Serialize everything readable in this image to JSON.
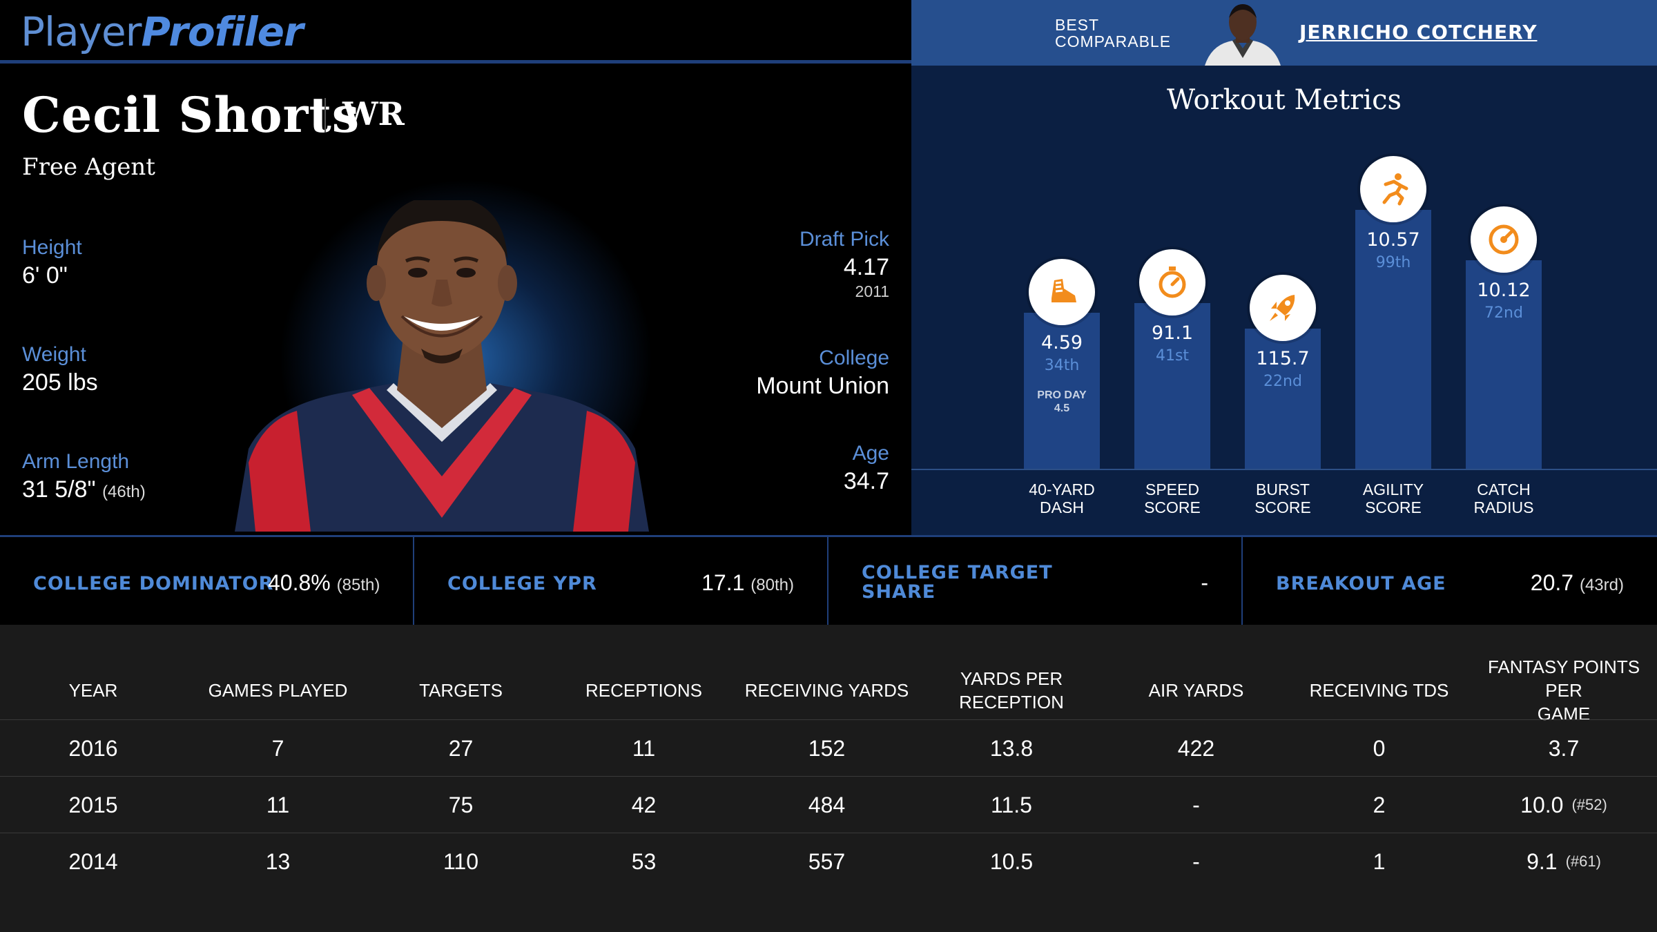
{
  "brand": {
    "part1": "Player",
    "part2": "Profiler"
  },
  "player": {
    "name": "Cecil Shorts",
    "position": "WR",
    "team": "Free Agent",
    "height": {
      "label": "Height",
      "value": "6' 0\""
    },
    "weight": {
      "label": "Weight",
      "value": "205 lbs"
    },
    "arm_length": {
      "label": "Arm Length",
      "value": "31 5/8\"",
      "rank": "(46th)"
    },
    "draft_pick": {
      "label": "Draft Pick",
      "value": "4.17",
      "year": "2011"
    },
    "college": {
      "label": "College",
      "value": "Mount Union"
    },
    "age": {
      "label": "Age",
      "value": "34.7"
    }
  },
  "comparable": {
    "label_line1": "BEST",
    "label_line2": "COMPARABLE",
    "name": "JERRICHO COTCHERY"
  },
  "workout": {
    "title": "Workout Metrics",
    "bars": [
      {
        "icon": "shoe-icon",
        "value": "4.59",
        "rank": "34th",
        "note1": "PRO DAY",
        "note2": "4.5",
        "cat1": "40-YARD",
        "cat2": "DASH",
        "percentile": 34
      },
      {
        "icon": "stopwatch-icon",
        "value": "91.1",
        "rank": "41st",
        "note1": "",
        "note2": "",
        "cat1": "SPEED",
        "cat2": "SCORE",
        "percentile": 41
      },
      {
        "icon": "rocket-icon",
        "value": "115.7",
        "rank": "22nd",
        "note1": "",
        "note2": "",
        "cat1": "BURST",
        "cat2": "SCORE",
        "percentile": 22
      },
      {
        "icon": "runner-icon",
        "value": "10.57",
        "rank": "99th",
        "note1": "",
        "note2": "",
        "cat1": "AGILITY",
        "cat2": "SCORE",
        "percentile": 99
      },
      {
        "icon": "target-icon",
        "value": "10.12",
        "rank": "72nd",
        "note1": "",
        "note2": "",
        "cat1": "CATCH",
        "cat2": "RADIUS",
        "percentile": 72
      }
    ]
  },
  "metrics": [
    {
      "label1": "COLLEGE DOMINATOR",
      "label2": "",
      "value": "40.8%",
      "rank": "(85th)"
    },
    {
      "label1": "COLLEGE YPR",
      "label2": "",
      "value": "17.1",
      "rank": "(80th)"
    },
    {
      "label1": "COLLEGE TARGET",
      "label2": "SHARE",
      "value": "-",
      "rank": ""
    },
    {
      "label1": "BREAKOUT AGE",
      "label2": "",
      "value": "20.7",
      "rank": "(43rd)"
    }
  ],
  "table": {
    "headers": [
      {
        "l1": "YEAR",
        "l2": ""
      },
      {
        "l1": "GAMES PLAYED",
        "l2": ""
      },
      {
        "l1": "TARGETS",
        "l2": ""
      },
      {
        "l1": "RECEPTIONS",
        "l2": ""
      },
      {
        "l1": "RECEIVING YARDS",
        "l2": ""
      },
      {
        "l1": "YARDS PER RECEPTION",
        "l2": ""
      },
      {
        "l1": "AIR YARDS",
        "l2": ""
      },
      {
        "l1": "RECEIVING TDS",
        "l2": ""
      },
      {
        "l1": "FANTASY POINTS PER",
        "l2": "GAME"
      }
    ],
    "rows": [
      {
        "cells": [
          "2016",
          "7",
          "27",
          "11",
          "152",
          "13.8",
          "422",
          "0",
          "3.7"
        ],
        "rank": ""
      },
      {
        "cells": [
          "2015",
          "11",
          "75",
          "42",
          "484",
          "11.5",
          "-",
          "2",
          "10.0"
        ],
        "rank": "(#52)"
      },
      {
        "cells": [
          "2014",
          "13",
          "110",
          "53",
          "557",
          "10.5",
          "-",
          "1",
          "9.1"
        ],
        "rank": "(#61)"
      }
    ]
  },
  "colors": {
    "accent": "#5b8fd8",
    "bar": "#1f4485",
    "icon": "#f28c1c",
    "navy": "#0b1f42",
    "comp_bar": "#264f8e"
  }
}
